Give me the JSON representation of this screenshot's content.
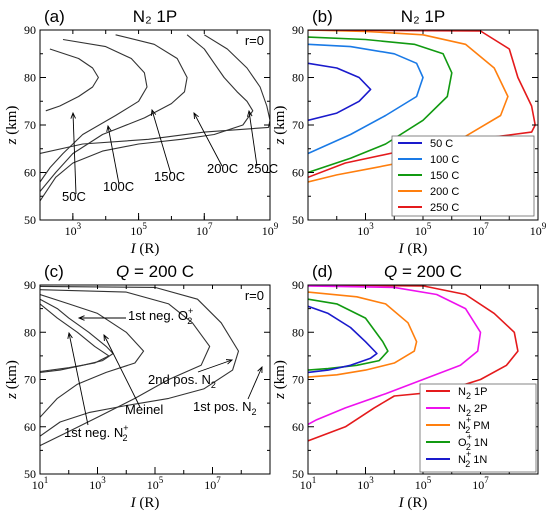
{
  "chart_data": [
    {
      "id": "a",
      "type": "line",
      "panel_label": "(a)",
      "title": "N₂ 1P",
      "corner_text": "r=0",
      "xlabel": "I (R)",
      "ylabel": "z (km)",
      "xscale": "log",
      "xlim": [
        100.0,
        1000000000.0
      ],
      "ylim": [
        50,
        90
      ],
      "xticks": [
        1000.0,
        100000.0,
        10000000.0,
        1000000000.0
      ],
      "xticklabels": [
        "10^3",
        "10^5",
        "10^7",
        "10^9"
      ],
      "yticks": [
        50,
        60,
        70,
        80,
        90
      ],
      "line_color": "#333333",
      "series": [
        {
          "name": "50C",
          "points": [
            [
              200,
              86
            ],
            [
              1500,
              84
            ],
            [
              4000,
              82
            ],
            [
              6000,
              80
            ],
            [
              4000,
              78
            ],
            [
              1500,
              76
            ],
            [
              400,
              74
            ],
            [
              150,
              73
            ]
          ]
        },
        {
          "name": "100C",
          "points": [
            [
              500,
              88
            ],
            [
              10000,
              86.5
            ],
            [
              60000,
              84
            ],
            [
              150000,
              81
            ],
            [
              180000,
              78
            ],
            [
              100000,
              75
            ],
            [
              20000,
              72
            ],
            [
              2000,
              68
            ],
            [
              500,
              64
            ],
            [
              200,
              61
            ],
            [
              100,
              58
            ]
          ]
        },
        {
          "name": "150C",
          "points": [
            [
              20000,
              89
            ],
            [
              300000,
              87
            ],
            [
              1500000,
              84
            ],
            [
              3000000,
              80
            ],
            [
              2500000,
              77
            ],
            [
              1000000,
              74.5
            ],
            [
              150000,
              71.5
            ],
            [
              8000,
              68
            ],
            [
              1000,
              64
            ],
            [
              300,
              60
            ],
            [
              100,
              56
            ]
          ]
        },
        {
          "name": "200C",
          "points": [
            [
              3000000,
              89
            ],
            [
              10000000,
              86
            ],
            [
              20000000,
              83
            ],
            [
              40000000,
              80
            ],
            [
              100000000,
              77
            ],
            [
              200000000,
              75
            ],
            [
              300000000,
              73
            ],
            [
              150000000,
              70
            ],
            [
              20000000,
              68
            ],
            [
              2000000,
              67
            ],
            [
              100000,
              66
            ],
            [
              8000,
              64.5
            ],
            [
              1000,
              62
            ],
            [
              300,
              59
            ],
            [
              100,
              54
            ]
          ]
        },
        {
          "name": "250C",
          "points": [
            [
              10000000,
              89
            ],
            [
              50000000,
              86
            ],
            [
              200000000,
              82
            ],
            [
              500000000,
              78
            ],
            [
              800000000,
              74
            ],
            [
              1000000000,
              71
            ],
            [
              900000000,
              69.5
            ],
            [
              10000000,
              68.5
            ],
            [
              200000,
              67
            ],
            [
              2000,
              66
            ],
            [
              100,
              64
            ]
          ]
        }
      ],
      "annotations": [
        "50C",
        "100C",
        "150C",
        "200C",
        "250C"
      ]
    },
    {
      "id": "b",
      "type": "line",
      "panel_label": "(b)",
      "title": "N₂ 1P",
      "xlabel": "I (R)",
      "ylabel": "z (km)",
      "xscale": "log",
      "xlim": [
        10.0,
        1000000000.0
      ],
      "ylim": [
        50,
        90
      ],
      "xticks": [
        1000.0,
        100000.0,
        10000000.0,
        1000000000.0
      ],
      "xticklabels": [
        "10^3",
        "10^5",
        "10^7",
        "10^9"
      ],
      "yticks": [
        50,
        60,
        70,
        80,
        90
      ],
      "legend": {
        "placement": "lower-right"
      },
      "series": [
        {
          "name": "50 C",
          "color": "#1a1acc",
          "points": [
            [
              10,
              83
            ],
            [
              100,
              82
            ],
            [
              600,
              80
            ],
            [
              1500,
              77.5
            ],
            [
              600,
              75
            ],
            [
              100,
              72.5
            ],
            [
              10,
              71
            ]
          ]
        },
        {
          "name": "100 C",
          "color": "#1a7ae6",
          "points": [
            [
              10,
              87
            ],
            [
              300,
              86.5
            ],
            [
              10000,
              85
            ],
            [
              60000,
              83
            ],
            [
              100000,
              80
            ],
            [
              60000,
              76
            ],
            [
              5000,
              72
            ],
            [
              300,
              68
            ],
            [
              10,
              64
            ]
          ]
        },
        {
          "name": "150 C",
          "color": "#119a11",
          "points": [
            [
              10,
              88.5
            ],
            [
              1000,
              88
            ],
            [
              50000,
              87
            ],
            [
              500000,
              85
            ],
            [
              1000000,
              81
            ],
            [
              700000,
              76
            ],
            [
              100000,
              71
            ],
            [
              5000,
              66
            ],
            [
              300,
              63
            ],
            [
              10,
              60
            ]
          ]
        },
        {
          "name": "200 C",
          "color": "#ff7f0e",
          "points": [
            [
              10,
              90
            ],
            [
              1000,
              89.7
            ],
            [
              100000,
              89
            ],
            [
              3000000,
              87
            ],
            [
              30000000,
              82
            ],
            [
              90000000,
              76
            ],
            [
              50000000,
              72
            ],
            [
              2000000,
              67
            ],
            [
              100000,
              63
            ],
            [
              2000,
              61
            ],
            [
              100,
              59.5
            ],
            [
              10,
              58
            ]
          ]
        },
        {
          "name": "250 C",
          "color": "#e41a1c",
          "points": [
            [
              10,
              90
            ],
            [
              10000000,
              89.8
            ],
            [
              100000000,
              86
            ],
            [
              200000000,
              80
            ],
            [
              600000000,
              74
            ],
            [
              800000000,
              70
            ],
            [
              600000000,
              68.5
            ],
            [
              30000000,
              67.5
            ],
            [
              100000,
              65.5
            ],
            [
              200,
              62
            ],
            [
              10,
              59
            ]
          ]
        }
      ]
    },
    {
      "id": "c",
      "type": "line",
      "panel_label": "(c)",
      "title": "Q = 200 C",
      "corner_text": "r=0",
      "xlabel": "I (R)",
      "ylabel": "z (km)",
      "xscale": "log",
      "xlim": [
        10.0,
        1000000000.0
      ],
      "ylim": [
        50,
        90
      ],
      "xticks": [
        10.0,
        1000.0,
        100000.0,
        10000000.0
      ],
      "xticklabels": [
        "10^1",
        "10^3",
        "10^5",
        "10^7"
      ],
      "yticks": [
        50,
        60,
        70,
        80,
        90
      ],
      "line_color": "#333333",
      "series": [
        {
          "name": "1st neg. O2+",
          "points": [
            [
              10,
              87
            ],
            [
              40,
              85
            ],
            [
              100,
              83
            ],
            [
              500,
              80
            ],
            [
              2000,
              77
            ],
            [
              3500,
              75.5
            ],
            [
              1500,
              74
            ],
            [
              300,
              73
            ],
            [
              50,
              72
            ],
            [
              10,
              71.5
            ]
          ]
        },
        {
          "name": "1st neg. N2+",
          "points": [
            [
              10,
              86
            ],
            [
              40,
              83
            ],
            [
              200,
              80
            ],
            [
              800,
              77
            ],
            [
              2500,
              75
            ],
            [
              800,
              73.5
            ],
            [
              100,
              72.5
            ],
            [
              10,
              71.7
            ]
          ]
        },
        {
          "name": "Meinel",
          "points": [
            [
              10,
              88
            ],
            [
              100,
              86
            ],
            [
              1000,
              84
            ],
            [
              10000,
              80
            ],
            [
              40000,
              76
            ],
            [
              20000,
              73.5
            ],
            [
              2000,
              71.5
            ],
            [
              200,
              69
            ],
            [
              40,
              66
            ],
            [
              10,
              62
            ]
          ]
        },
        {
          "name": "2nd pos. N2",
          "points": [
            [
              10,
              89
            ],
            [
              10000,
              88.5
            ],
            [
              300000,
              86
            ],
            [
              2000000,
              82
            ],
            [
              8000000,
              77
            ],
            [
              4000000,
              73
            ],
            [
              300000,
              70
            ],
            [
              20000,
              66
            ],
            [
              1000,
              62
            ],
            [
              100,
              59
            ],
            [
              10,
              56
            ]
          ]
        },
        {
          "name": "1st pos. N2",
          "points": [
            [
              10,
              89.7
            ],
            [
              100000,
              89.5
            ],
            [
              3000000,
              87
            ],
            [
              20000000,
              82
            ],
            [
              80000000,
              76
            ],
            [
              50000000,
              72
            ],
            [
              5000000,
              68
            ],
            [
              300000,
              66
            ],
            [
              10000,
              64.5
            ],
            [
              500,
              63
            ],
            [
              50,
              61
            ],
            [
              10,
              58
            ]
          ]
        }
      ],
      "annotations": [
        "1st neg. O2+",
        "1st neg. N2+",
        "Meinel",
        "2nd pos. N2",
        "1st pos. N2"
      ]
    },
    {
      "id": "d",
      "type": "line",
      "panel_label": "(d)",
      "title": "Q = 200 C",
      "xlabel": "I (R)",
      "ylabel": "z (km)",
      "xscale": "log",
      "xlim": [
        10.0,
        1000000000.0
      ],
      "ylim": [
        50,
        90
      ],
      "xticks": [
        10.0,
        1000.0,
        100000.0,
        10000000.0
      ],
      "xticklabels": [
        "10^1",
        "10^3",
        "10^5",
        "10^7"
      ],
      "yticks": [
        50,
        60,
        70,
        80,
        90
      ],
      "legend": {
        "placement": "lower-right"
      },
      "series": [
        {
          "name": "N2 1P",
          "color": "#e41a1c",
          "points": [
            [
              10,
              90
            ],
            [
              100000,
              89.8
            ],
            [
              3000000,
              88
            ],
            [
              30000000,
              84
            ],
            [
              150000000,
              80
            ],
            [
              200000000,
              76
            ],
            [
              80000000,
              73
            ],
            [
              10000000,
              70
            ],
            [
              500000,
              67.5
            ],
            [
              10000,
              66.5
            ],
            [
              2000,
              64
            ],
            [
              200,
              60
            ],
            [
              10,
              57
            ]
          ]
        },
        {
          "name": "N2 2P",
          "color": "#ee11ee",
          "points": [
            [
              10,
              89.8
            ],
            [
              10000,
              89.5
            ],
            [
              300000,
              88
            ],
            [
              3000000,
              85
            ],
            [
              10000000,
              80
            ],
            [
              8000000,
              76
            ],
            [
              2000000,
              73
            ],
            [
              100000,
              70
            ],
            [
              5000,
              67
            ],
            [
              200,
              64
            ],
            [
              20,
              61.5
            ],
            [
              10,
              60.5
            ]
          ]
        },
        {
          "name": "N2+ PM",
          "color": "#ff7f0e",
          "points": [
            [
              10,
              88.5
            ],
            [
              500,
              87.5
            ],
            [
              5000,
              86
            ],
            [
              30000,
              82
            ],
            [
              60000,
              78
            ],
            [
              50000,
              76
            ],
            [
              10000,
              73.5
            ],
            [
              1000,
              72
            ],
            [
              100,
              71
            ],
            [
              10,
              70.5
            ]
          ]
        },
        {
          "name": "O2+ 1N",
          "color": "#119a11",
          "points": [
            [
              10,
              87
            ],
            [
              100,
              86
            ],
            [
              1000,
              83
            ],
            [
              4000,
              78
            ],
            [
              6000,
              76
            ],
            [
              3000,
              74
            ],
            [
              500,
              73
            ],
            [
              50,
              72.3
            ],
            [
              10,
              72
            ]
          ]
        },
        {
          "name": "N2+ 1N",
          "color": "#1a1acc",
          "points": [
            [
              10,
              85.5
            ],
            [
              50,
              84
            ],
            [
              300,
              81
            ],
            [
              1000,
              78
            ],
            [
              2500,
              75.5
            ],
            [
              1500,
              74.5
            ],
            [
              300,
              73
            ],
            [
              50,
              72
            ],
            [
              10,
              71.5
            ]
          ]
        }
      ]
    }
  ]
}
